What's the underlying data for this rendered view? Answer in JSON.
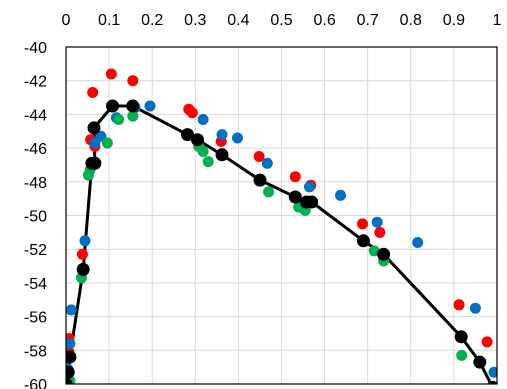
{
  "chart_data": {
    "type": "scatter",
    "title": "",
    "xlabel": "",
    "ylabel": "",
    "xlim": [
      0,
      1
    ],
    "ylim": [
      -60,
      -40
    ],
    "x_ticks": [
      "0",
      "0.1",
      "0.2",
      "0.3",
      "0.4",
      "0.5",
      "0.6",
      "0.7",
      "0.8",
      "0.9",
      "1"
    ],
    "y_ticks": [
      "-40",
      "-42",
      "-44",
      "-46",
      "-48",
      "-50",
      "-52",
      "-54",
      "-56",
      "-58",
      "-60"
    ],
    "x_axis_position": "top",
    "grid": true,
    "legend": "none",
    "series": [
      {
        "color": "#ff0000",
        "marker": "circle",
        "points": [
          [
            0.007,
            -57.3
          ],
          [
            0.007,
            -58.1
          ],
          [
            0.038,
            -52.3
          ],
          [
            0.057,
            -45.5
          ],
          [
            0.062,
            -42.7
          ],
          [
            0.067,
            -45.9
          ],
          [
            0.105,
            -41.6
          ],
          [
            0.155,
            -42.0
          ],
          [
            0.285,
            -43.7
          ],
          [
            0.293,
            -43.9
          ],
          [
            0.36,
            -45.6
          ],
          [
            0.448,
            -46.5
          ],
          [
            0.532,
            -47.7
          ],
          [
            0.568,
            -48.2
          ],
          [
            0.688,
            -50.5
          ],
          [
            0.728,
            -51.0
          ],
          [
            0.912,
            -55.3
          ],
          [
            0.977,
            -57.5
          ]
        ]
      },
      {
        "color": "#0070c0",
        "marker": "circle",
        "points": [
          [
            0.004,
            -59.1
          ],
          [
            0.009,
            -57.6
          ],
          [
            0.012,
            -55.6
          ],
          [
            0.044,
            -51.5
          ],
          [
            0.067,
            -45.7
          ],
          [
            0.081,
            -45.3
          ],
          [
            0.117,
            -44.2
          ],
          [
            0.16,
            -43.6
          ],
          [
            0.195,
            -43.5
          ],
          [
            0.318,
            -44.3
          ],
          [
            0.362,
            -45.2
          ],
          [
            0.398,
            -45.4
          ],
          [
            0.467,
            -46.9
          ],
          [
            0.565,
            -48.3
          ],
          [
            0.637,
            -48.8
          ],
          [
            0.722,
            -50.4
          ],
          [
            0.816,
            -51.6
          ],
          [
            0.95,
            -55.5
          ],
          [
            0.993,
            -59.3
          ]
        ]
      },
      {
        "color": "#00b050",
        "marker": "circle",
        "points": [
          [
            0.005,
            -59.3
          ],
          [
            0.009,
            -59.8
          ],
          [
            0.036,
            -53.7
          ],
          [
            0.052,
            -47.6
          ],
          [
            0.056,
            -47.3
          ],
          [
            0.096,
            -45.7
          ],
          [
            0.122,
            -44.3
          ],
          [
            0.155,
            -44.1
          ],
          [
            0.308,
            -45.9
          ],
          [
            0.318,
            -46.2
          ],
          [
            0.33,
            -46.8
          ],
          [
            0.47,
            -48.6
          ],
          [
            0.54,
            -49.5
          ],
          [
            0.555,
            -49.7
          ],
          [
            0.715,
            -52.1
          ],
          [
            0.737,
            -52.7
          ],
          [
            0.918,
            -58.3
          ]
        ]
      },
      {
        "color": "#000000",
        "marker": "circle",
        "line": true,
        "points": [
          [
            0.0,
            -60.0
          ],
          [
            0.005,
            -59.3
          ],
          [
            0.009,
            -58.4
          ],
          [
            0.04,
            -53.2
          ],
          [
            0.06,
            -46.9
          ],
          [
            0.067,
            -46.9
          ],
          [
            0.065,
            -44.8
          ],
          [
            0.108,
            -43.5
          ],
          [
            0.155,
            -43.5
          ],
          [
            0.282,
            -45.2
          ],
          [
            0.305,
            -45.5
          ],
          [
            0.362,
            -46.4
          ],
          [
            0.45,
            -47.9
          ],
          [
            0.532,
            -48.9
          ],
          [
            0.558,
            -49.2
          ],
          [
            0.57,
            -49.2
          ],
          [
            0.69,
            -51.5
          ],
          [
            0.737,
            -52.3
          ],
          [
            0.917,
            -57.2
          ],
          [
            0.96,
            -58.7
          ],
          [
            0.99,
            -60.2
          ]
        ]
      }
    ]
  }
}
